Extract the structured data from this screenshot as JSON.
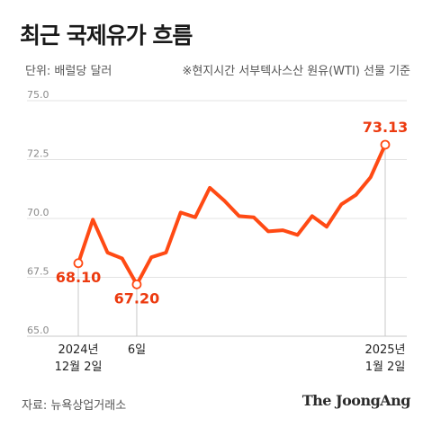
{
  "header": {
    "title": "최근 국제유가 흐름",
    "unit_note": "단위: 배럴당 달러",
    "basis_note": "※현지시간 서부텍사스산 원유(WTI) 선물 기준"
  },
  "footer": {
    "source": "자료: 뉴욕상업거래소",
    "publisher": "The JoongAng"
  },
  "colors": {
    "line": "#ff4a14",
    "label": "#ec3a0f",
    "grid": "#e3e3e3",
    "axis": "#c8c8c8"
  },
  "chart_data": {
    "type": "line",
    "title": "최근 국제유가 흐름",
    "xlabel": "",
    "ylabel": "",
    "ylim": [
      65.0,
      75.0
    ],
    "yticks": [
      "65.0",
      "67.5",
      "70.0",
      "72.5",
      "75.0"
    ],
    "grid": true,
    "series": [
      {
        "values": [
          68.1,
          69.95,
          68.55,
          68.3,
          67.2,
          68.35,
          68.55,
          70.25,
          70.05,
          71.3,
          70.75,
          70.1,
          70.05,
          69.45,
          69.5,
          69.3,
          70.1,
          69.65,
          70.6,
          71.0,
          71.75,
          73.13
        ]
      }
    ],
    "x_tick_labels": [
      {
        "index": 0,
        "line1": "2024년",
        "line2": "12월 2일"
      },
      {
        "index": 4,
        "line1": "6일",
        "line2": ""
      },
      {
        "index": 21,
        "line1": "2025년",
        "line2": "1월 2일"
      }
    ],
    "data_labels": [
      {
        "index": 0,
        "text": "68.10"
      },
      {
        "index": 4,
        "text": "67.20"
      },
      {
        "index": 21,
        "text": "73.13"
      }
    ]
  }
}
